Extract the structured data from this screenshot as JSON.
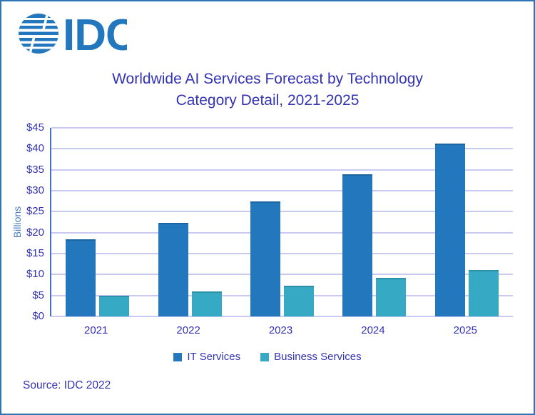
{
  "window": {
    "border_color": "#2E75B6",
    "background": "#FFFFFF"
  },
  "logo": {
    "text": "IDC",
    "color": "#2277BD"
  },
  "chart_data": {
    "type": "bar",
    "title": "Worldwide AI Services Forecast by Technology Category Detail, 2021-2025",
    "title_lines": [
      "Worldwide AI Services Forecast by Technology",
      "Category Detail, 2021-2025"
    ],
    "categories": [
      "2021",
      "2022",
      "2023",
      "2024",
      "2025"
    ],
    "series": [
      {
        "name": "IT Services",
        "color": "#2277BD",
        "values": [
          18.4,
          22.4,
          27.5,
          33.9,
          41.3
        ]
      },
      {
        "name": "Business Services",
        "color": "#36AAC5",
        "values": [
          4.9,
          6.0,
          7.3,
          9.2,
          11.1
        ]
      }
    ],
    "xlabel": "",
    "ylabel": "Billions",
    "ylim": [
      0,
      45
    ],
    "ytick_step": 5,
    "ytick_labels": [
      "$0",
      "$5",
      "$10",
      "$15",
      "$20",
      "$25",
      "$30",
      "$35",
      "$40",
      "$45"
    ],
    "grid": true,
    "legend_position": "bottom"
  },
  "source": {
    "text": "Source: IDC 2022"
  },
  "colors": {
    "text_indigo": "#3333B3",
    "gridline": "#C9C9F2",
    "y_axis_line": "#4472C4",
    "ylabel_blue": "#4E81BD"
  }
}
